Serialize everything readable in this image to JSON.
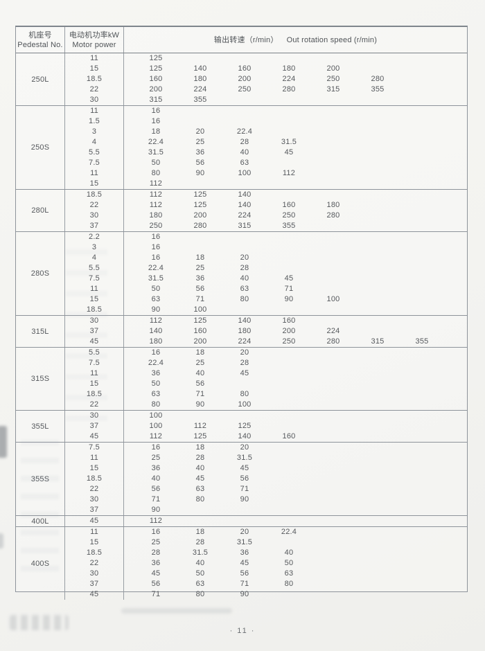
{
  "page": {
    "page_number": "· 11 ·"
  },
  "table": {
    "header": {
      "pedestal_zh": "机座号",
      "pedestal_en": "Pedestal No.",
      "power_zh": "电动机功率kW",
      "power_en": "Motor power",
      "speed_zh": "输出转速（r/min）",
      "speed_en": "Out rotation speed (r/min)"
    },
    "groups": [
      {
        "pedestal": "250L",
        "rows": [
          {
            "power": "11",
            "speeds": [
              "125"
            ]
          },
          {
            "power": "15",
            "speeds": [
              "125",
              "140",
              "160",
              "180",
              "200"
            ]
          },
          {
            "power": "18.5",
            "speeds": [
              "160",
              "180",
              "200",
              "224",
              "250",
              "280"
            ]
          },
          {
            "power": "22",
            "speeds": [
              "200",
              "224",
              "250",
              "280",
              "315",
              "355"
            ]
          },
          {
            "power": "30",
            "speeds": [
              "315",
              "355"
            ]
          }
        ]
      },
      {
        "pedestal": "250S",
        "rows": [
          {
            "power": "11",
            "speeds": [
              "16"
            ]
          },
          {
            "power": "1.5",
            "speeds": [
              "16"
            ]
          },
          {
            "power": "3",
            "speeds": [
              "18",
              "20",
              "22.4"
            ]
          },
          {
            "power": "4",
            "speeds": [
              "22.4",
              "25",
              "28",
              "31.5"
            ]
          },
          {
            "power": "5.5",
            "speeds": [
              "31.5",
              "36",
              "40",
              "45"
            ]
          },
          {
            "power": "7.5",
            "speeds": [
              "50",
              "56",
              "63"
            ]
          },
          {
            "power": "11",
            "speeds": [
              "80",
              "90",
              "100",
              "112"
            ]
          },
          {
            "power": "15",
            "speeds": [
              "112"
            ]
          }
        ]
      },
      {
        "pedestal": "280L",
        "rows": [
          {
            "power": "18.5",
            "speeds": [
              "112",
              "125",
              "140"
            ]
          },
          {
            "power": "22",
            "speeds": [
              "112",
              "125",
              "140",
              "160",
              "180"
            ]
          },
          {
            "power": "30",
            "speeds": [
              "180",
              "200",
              "224",
              "250",
              "280"
            ]
          },
          {
            "power": "37",
            "speeds": [
              "250",
              "280",
              "315",
              "355"
            ]
          }
        ]
      },
      {
        "pedestal": "280S",
        "rows": [
          {
            "power": "2.2",
            "speeds": [
              "16"
            ]
          },
          {
            "power": "3",
            "speeds": [
              "16"
            ]
          },
          {
            "power": "4",
            "speeds": [
              "16",
              "18",
              "20"
            ]
          },
          {
            "power": "5.5",
            "speeds": [
              "22.4",
              "25",
              "28"
            ]
          },
          {
            "power": "7.5",
            "speeds": [
              "31.5",
              "36",
              "40",
              "45"
            ]
          },
          {
            "power": "11",
            "speeds": [
              "50",
              "56",
              "63",
              "71"
            ]
          },
          {
            "power": "15",
            "speeds": [
              "63",
              "71",
              "80",
              "90",
              "100"
            ]
          },
          {
            "power": "18.5",
            "speeds": [
              "90",
              "100"
            ]
          }
        ]
      },
      {
        "pedestal": "315L",
        "rows": [
          {
            "power": "30",
            "speeds": [
              "112",
              "125",
              "140",
              "160"
            ]
          },
          {
            "power": "37",
            "speeds": [
              "140",
              "160",
              "180",
              "200",
              "224"
            ]
          },
          {
            "power": "45",
            "speeds": [
              "180",
              "200",
              "224",
              "250",
              "280",
              "315",
              "355"
            ]
          }
        ]
      },
      {
        "pedestal": "315S",
        "rows": [
          {
            "power": "5.5",
            "speeds": [
              "16",
              "18",
              "20"
            ]
          },
          {
            "power": "7.5",
            "speeds": [
              "22.4",
              "25",
              "28"
            ]
          },
          {
            "power": "11",
            "speeds": [
              "36",
              "40",
              "45"
            ]
          },
          {
            "power": "15",
            "speeds": [
              "50",
              "56"
            ]
          },
          {
            "power": "18.5",
            "speeds": [
              "63",
              "71",
              "80"
            ]
          },
          {
            "power": "22",
            "speeds": [
              "80",
              "90",
              "100"
            ]
          }
        ]
      },
      {
        "pedestal": "355L",
        "rows": [
          {
            "power": "30",
            "speeds": [
              "100"
            ]
          },
          {
            "power": "37",
            "speeds": [
              "100",
              "112",
              "125"
            ]
          },
          {
            "power": "45",
            "speeds": [
              "112",
              "125",
              "140",
              "160"
            ]
          }
        ]
      },
      {
        "pedestal": "355S",
        "rows": [
          {
            "power": "7.5",
            "speeds": [
              "16",
              "18",
              "20"
            ]
          },
          {
            "power": "11",
            "speeds": [
              "25",
              "28",
              "31.5"
            ]
          },
          {
            "power": "15",
            "speeds": [
              "36",
              "40",
              "45"
            ]
          },
          {
            "power": "18.5",
            "speeds": [
              "40",
              "45",
              "56"
            ]
          },
          {
            "power": "22",
            "speeds": [
              "56",
              "63",
              "71"
            ]
          },
          {
            "power": "30",
            "speeds": [
              "71",
              "80",
              "90"
            ]
          },
          {
            "power": "37",
            "speeds": [
              "90"
            ]
          }
        ]
      },
      {
        "pedestal": "400L",
        "rows": [
          {
            "power": "45",
            "speeds": [
              "112"
            ]
          }
        ]
      },
      {
        "pedestal": "400S",
        "rows": [
          {
            "power": "11",
            "speeds": [
              "16",
              "18",
              "20",
              "22.4"
            ]
          },
          {
            "power": "15",
            "speeds": [
              "25",
              "28",
              "31.5"
            ]
          },
          {
            "power": "18.5",
            "speeds": [
              "28",
              "31.5",
              "36",
              "40"
            ]
          },
          {
            "power": "22",
            "speeds": [
              "36",
              "40",
              "45",
              "50"
            ]
          },
          {
            "power": "30",
            "speeds": [
              "45",
              "50",
              "56",
              "63"
            ]
          },
          {
            "power": "37",
            "speeds": [
              "56",
              "63",
              "71",
              "80"
            ]
          },
          {
            "power": "45",
            "speeds": [
              "71",
              "80",
              "90"
            ]
          }
        ]
      }
    ]
  },
  "colors": {
    "paper": "#f3f3f0",
    "line": "#8d939a",
    "text": "#55585c"
  }
}
